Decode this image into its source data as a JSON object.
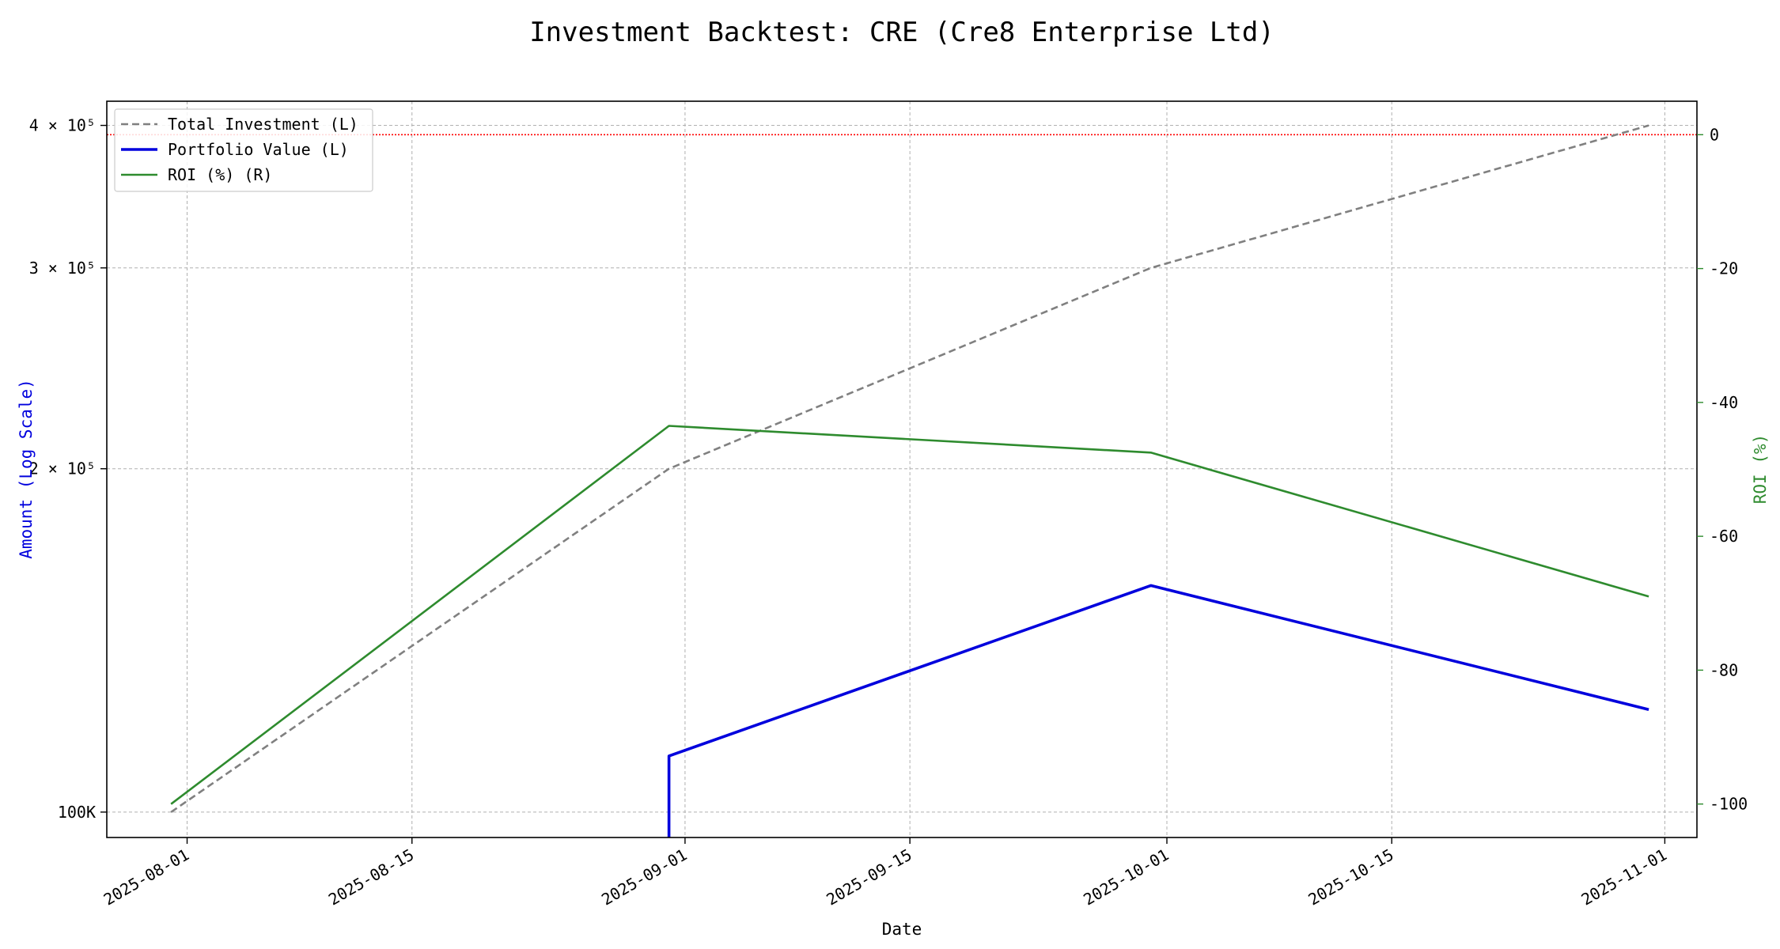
{
  "chart_data": {
    "type": "line",
    "title": "Investment Backtest: CRE (Cre8 Enterprise Ltd)",
    "xlabel": "Date",
    "ylabel_left": "Amount (Log Scale)",
    "ylabel_right": "ROI (%)",
    "left_axis_scale": "log",
    "xlim": [
      "2025-07-27",
      "2025-11-03"
    ],
    "ylim_left": [
      95000,
      420000
    ],
    "ylim_right": [
      -105,
      5
    ],
    "x_ticks": [
      "2025-08-01",
      "2025-08-15",
      "2025-09-01",
      "2025-09-15",
      "2025-10-01",
      "2025-10-15",
      "2025-11-01"
    ],
    "y_ticks_left": [
      {
        "value": 100000,
        "label": "100K"
      },
      {
        "value": 200000,
        "label": "2 × 10⁵"
      },
      {
        "value": 300000,
        "label": "3 × 10⁵"
      },
      {
        "value": 400000,
        "label": "4 × 10⁵"
      }
    ],
    "y_ticks_right": [
      0,
      -20,
      -40,
      -60,
      -80,
      -100
    ],
    "reference_line": {
      "axis": "right",
      "value": 0,
      "color": "#ff0000",
      "style": "dotted"
    },
    "grid": true,
    "legend_position": "top-left",
    "series": [
      {
        "name": "Total Investment (L)",
        "axis": "left",
        "color": "#808080",
        "style": "dashed",
        "points": [
          [
            "2025-07-31",
            100000
          ],
          [
            "2025-08-31",
            200000
          ],
          [
            "2025-09-30",
            300000
          ],
          [
            "2025-10-31",
            400000
          ]
        ]
      },
      {
        "name": "Portfolio Value (L)",
        "axis": "left",
        "color": "#0000dd",
        "style": "solid",
        "points": [
          [
            "2025-08-31",
            93000
          ],
          [
            "2025-08-31",
            112000
          ],
          [
            "2025-09-30",
            158000
          ],
          [
            "2025-10-31",
            123000
          ]
        ]
      },
      {
        "name": "ROI (%) (R)",
        "axis": "right",
        "color": "#2e8b2e",
        "style": "solid",
        "points": [
          [
            "2025-07-31",
            -100
          ],
          [
            "2025-08-31",
            -43.5
          ],
          [
            "2025-09-30",
            -47.5
          ],
          [
            "2025-10-31",
            -69
          ]
        ]
      }
    ]
  }
}
